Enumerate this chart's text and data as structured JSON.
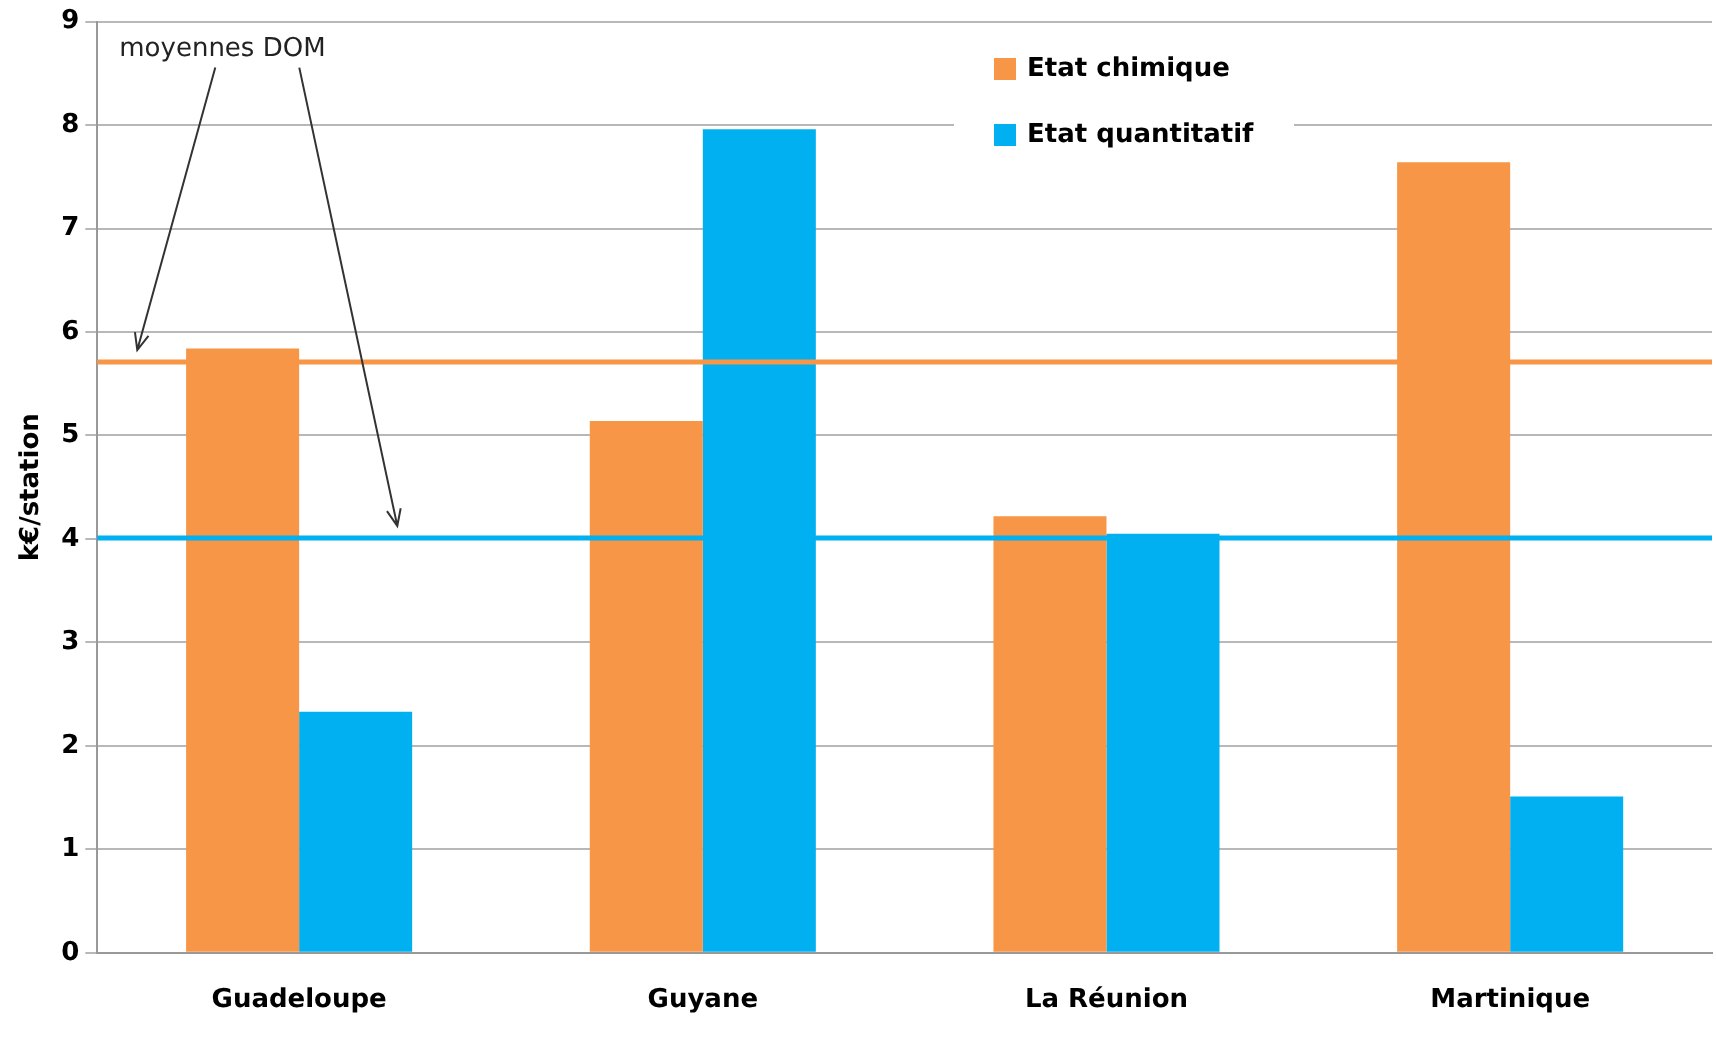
{
  "chart_data": {
    "type": "bar",
    "ylabel": "k€/station",
    "categories": [
      "Guadeloupe",
      "Guyane",
      "La Réunion",
      "Martinique"
    ],
    "series": [
      {
        "name": "Etat chimique",
        "color": "#f79646",
        "values": [
          5.84,
          5.14,
          4.22,
          7.64
        ]
      },
      {
        "name": "Etat quantitatif",
        "color": "#00b0f0",
        "values": [
          2.33,
          7.96,
          4.05,
          1.51
        ]
      }
    ],
    "ylim": [
      0,
      9
    ],
    "yticks": [
      0,
      1,
      2,
      3,
      4,
      5,
      6,
      7,
      8,
      9
    ],
    "grid": "y",
    "legend": "top",
    "ref_lines": [
      {
        "axis": "y",
        "value": 5.71,
        "color": "#f79646"
      },
      {
        "axis": "y",
        "value": 4.01,
        "color": "#00b0f0"
      }
    ],
    "annotations": [
      "moyennes DOM"
    ]
  }
}
